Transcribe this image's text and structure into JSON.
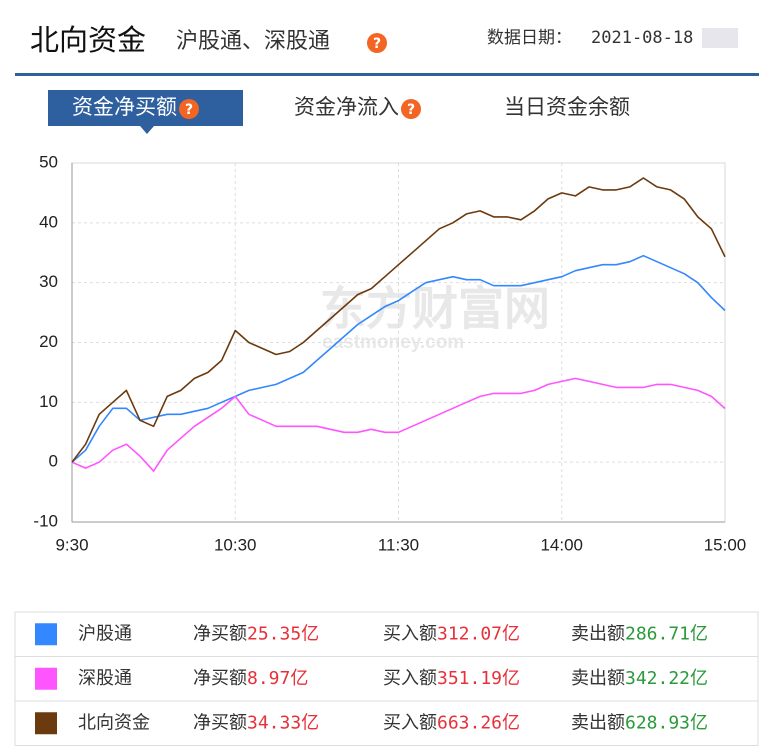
{
  "header": {
    "title": "北向资金",
    "subtitle": "沪股通、深股通",
    "date_label": "数据日期：",
    "date": "2021-08-18"
  },
  "tabs": [
    "资金净买额",
    "资金净流入",
    "当日资金余额"
  ],
  "active_tab": 0,
  "watermark": {
    "brand": "东方财富网",
    "site": "eastmoney.com"
  },
  "chart_data": {
    "type": "line",
    "x": [
      0,
      5,
      10,
      15,
      20,
      25,
      30,
      35,
      40,
      45,
      50,
      55,
      60,
      65,
      70,
      75,
      80,
      85,
      90,
      95,
      100,
      105,
      110,
      115,
      120,
      125,
      130,
      135,
      140,
      145,
      150,
      155,
      160,
      165,
      170,
      175,
      180,
      185,
      190,
      195,
      200,
      205,
      210,
      215,
      220,
      225,
      230,
      235,
      240
    ],
    "xlim": [
      0,
      240
    ],
    "xticks": [
      {
        "value": 0,
        "label": "9:30"
      },
      {
        "value": 60,
        "label": "10:30"
      },
      {
        "value": 120,
        "label": "11:30"
      },
      {
        "value": 180,
        "label": "14:00"
      },
      {
        "value": 240,
        "label": "15:00"
      }
    ],
    "ylim": [
      -10,
      50
    ],
    "yticks": [
      -10,
      0,
      10,
      20,
      30,
      40,
      50
    ],
    "grid": true,
    "series": [
      {
        "name": "沪股通",
        "color": "#3388ff",
        "values": [
          0,
          2,
          6,
          9,
          9,
          7,
          7.5,
          8,
          8,
          8.5,
          9,
          10,
          11,
          12,
          12.5,
          13,
          14,
          15,
          17,
          19,
          21,
          23,
          24.5,
          26,
          27,
          28.5,
          30,
          30.5,
          31,
          30.5,
          30.5,
          29.5,
          29.5,
          29.5,
          30,
          30.5,
          31,
          32,
          32.5,
          33,
          33,
          33.5,
          34.5,
          33.5,
          32.5,
          31.5,
          30,
          27.5,
          25.35
        ]
      },
      {
        "name": "深股通",
        "color": "#ff55ff",
        "values": [
          0,
          -1,
          0,
          2,
          3,
          1,
          -1.5,
          2,
          4,
          6,
          7.5,
          9,
          11,
          8,
          7,
          6,
          6,
          6,
          6,
          5.5,
          5,
          5,
          5.5,
          5,
          5,
          6,
          7,
          8,
          9,
          10,
          11,
          11.5,
          11.5,
          11.5,
          12,
          13,
          13.5,
          14,
          13.5,
          13,
          12.5,
          12.5,
          12.5,
          13,
          13,
          12.5,
          12,
          11,
          8.97
        ]
      },
      {
        "name": "北向资金",
        "color": "#6b3a0e",
        "values": [
          0,
          3,
          8,
          10,
          12,
          7,
          6,
          11,
          12,
          14,
          15,
          17,
          22,
          20,
          19,
          18,
          18.5,
          20,
          22,
          24,
          26,
          28,
          29,
          31,
          33,
          35,
          37,
          39,
          40,
          41.5,
          42,
          41,
          41,
          40.5,
          42,
          44,
          45,
          44.5,
          46,
          45.5,
          45.5,
          46,
          47.5,
          46,
          45.5,
          44,
          41,
          39,
          34.33
        ]
      }
    ],
    "summary": {
      "labels": [
        "净买额",
        "买入额",
        "卖出额"
      ],
      "rows": [
        [
          "25.35亿",
          "312.07亿",
          "286.71亿"
        ],
        [
          "8.97亿",
          "351.19亿",
          "342.22亿"
        ],
        [
          "34.33亿",
          "663.26亿",
          "628.93亿"
        ]
      ],
      "colors": [
        "#e8303a",
        "#e8303a",
        "#2a9a3a"
      ]
    }
  }
}
